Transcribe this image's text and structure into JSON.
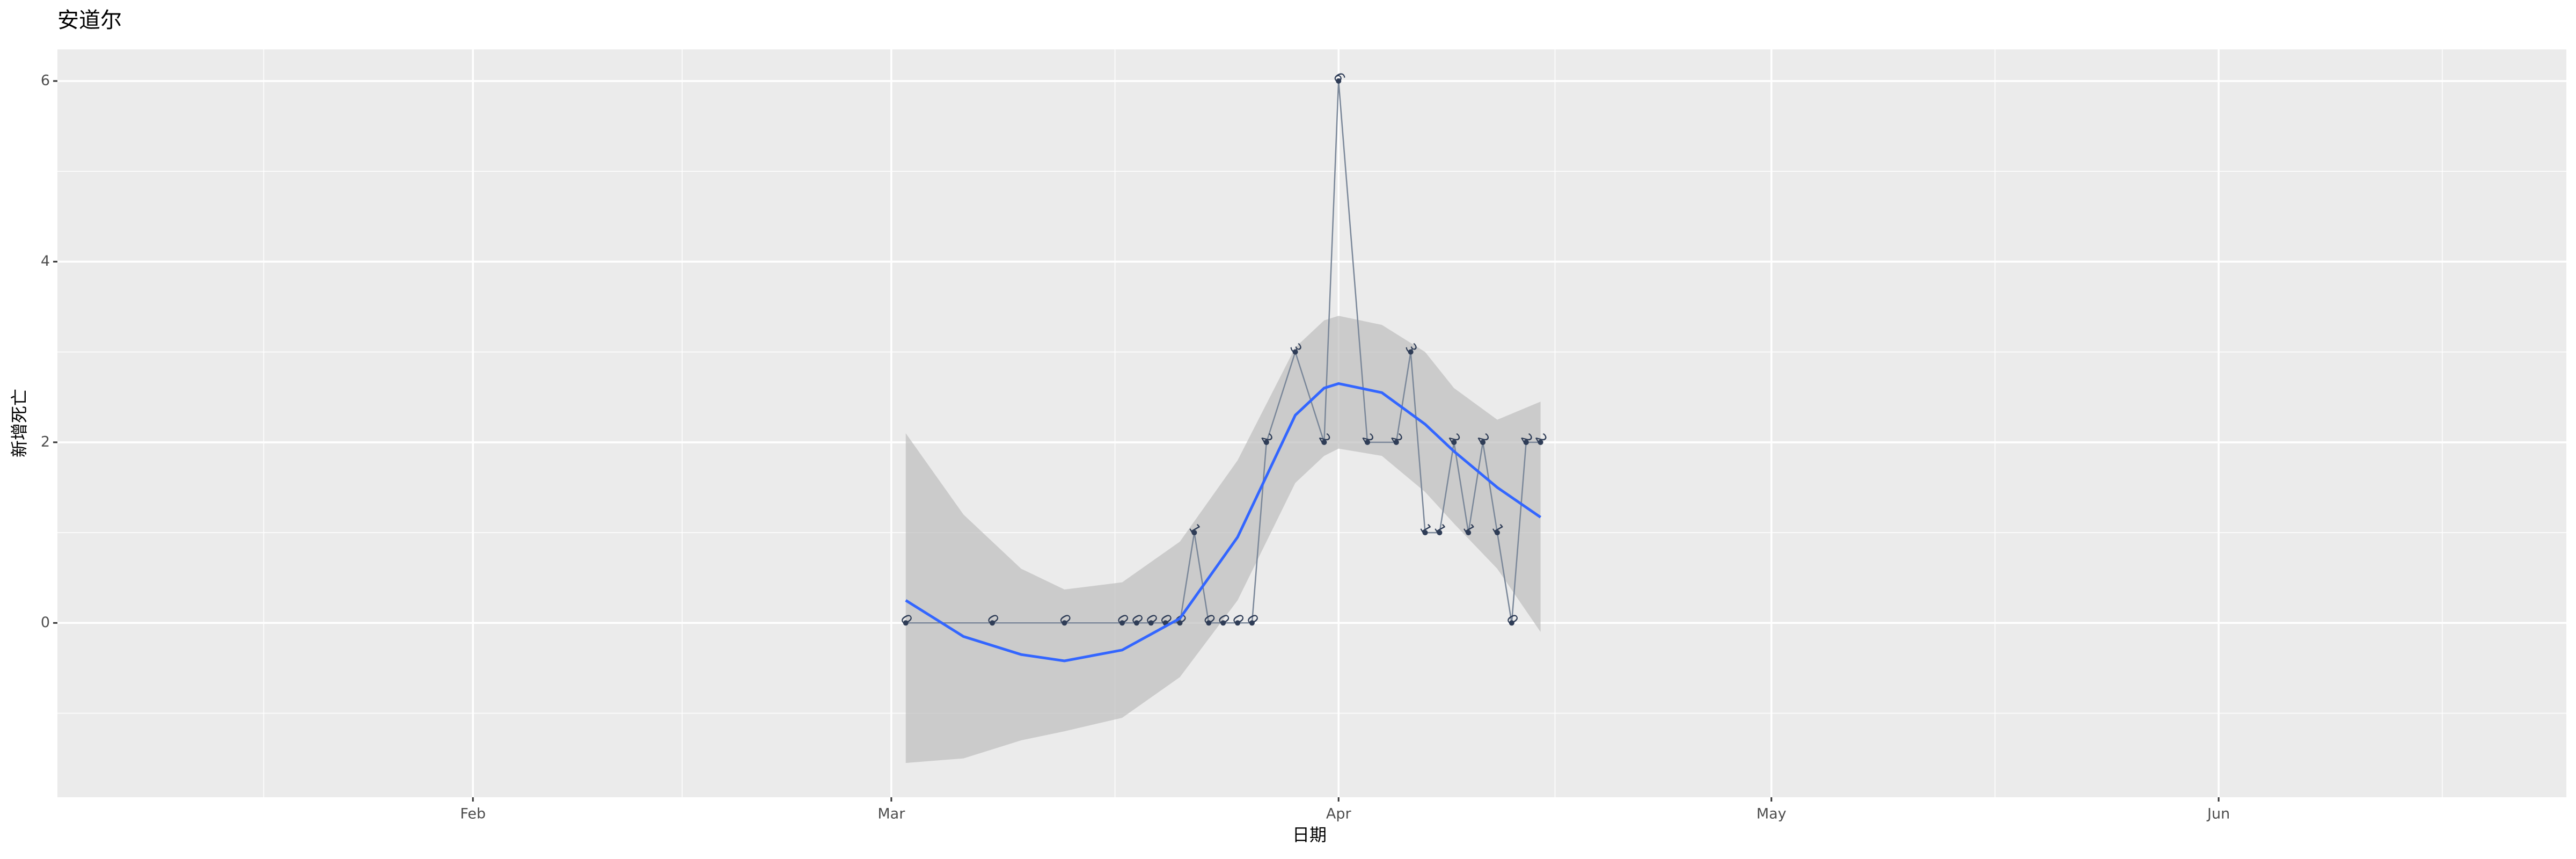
{
  "chart_data": {
    "type": "line",
    "title": "安道尔",
    "x_label": "日期",
    "y_label": "新增死亡",
    "x": [
      62,
      68,
      73,
      77,
      78,
      79,
      80,
      81,
      82,
      83,
      84,
      85,
      86,
      87,
      89,
      91,
      92,
      94,
      96,
      97,
      98,
      99,
      100,
      101,
      102,
      103,
      104,
      105,
      106
    ],
    "series": [
      {
        "color": "#7a8799",
        "point_color": "#2f3d57",
        "values": [
          0,
          0,
          0,
          0,
          0,
          0,
          0,
          0,
          1,
          0,
          0,
          0,
          0,
          2,
          3,
          2,
          6,
          2,
          2,
          3,
          1,
          1,
          2,
          1,
          2,
          1,
          0,
          2,
          2
        ]
      }
    ],
    "smooth": {
      "color": "#3366ff",
      "band_color": "#bdbdbd",
      "x": [
        62,
        66,
        70,
        73,
        77,
        81,
        85,
        89,
        91,
        92,
        95,
        98,
        100,
        103,
        106
      ],
      "values": [
        0.25,
        -0.15,
        -0.35,
        -0.42,
        -0.3,
        0.05,
        0.95,
        2.3,
        2.6,
        2.65,
        2.55,
        2.2,
        1.9,
        1.5,
        1.17
      ],
      "lower": [
        -1.55,
        -1.5,
        -1.3,
        -1.2,
        -1.05,
        -0.6,
        0.25,
        1.55,
        1.85,
        1.93,
        1.85,
        1.45,
        1.1,
        0.6,
        -0.1
      ],
      "upper": [
        2.1,
        1.2,
        0.6,
        0.37,
        0.45,
        0.9,
        1.8,
        3.05,
        3.35,
        3.4,
        3.3,
        3.0,
        2.6,
        2.25,
        2.45
      ]
    },
    "xlim": [
      3.2,
      177.1
    ],
    "xticks": [
      {
        "value": 32,
        "label": "Feb"
      },
      {
        "value": 61,
        "label": "Mar"
      },
      {
        "value": 92,
        "label": "Apr"
      },
      {
        "value": 122,
        "label": "May"
      },
      {
        "value": 153,
        "label": "Jun"
      }
    ],
    "ylim": [
      -1.93,
      6.35
    ],
    "yticks": [
      0,
      2,
      4,
      6
    ],
    "grid": true
  }
}
